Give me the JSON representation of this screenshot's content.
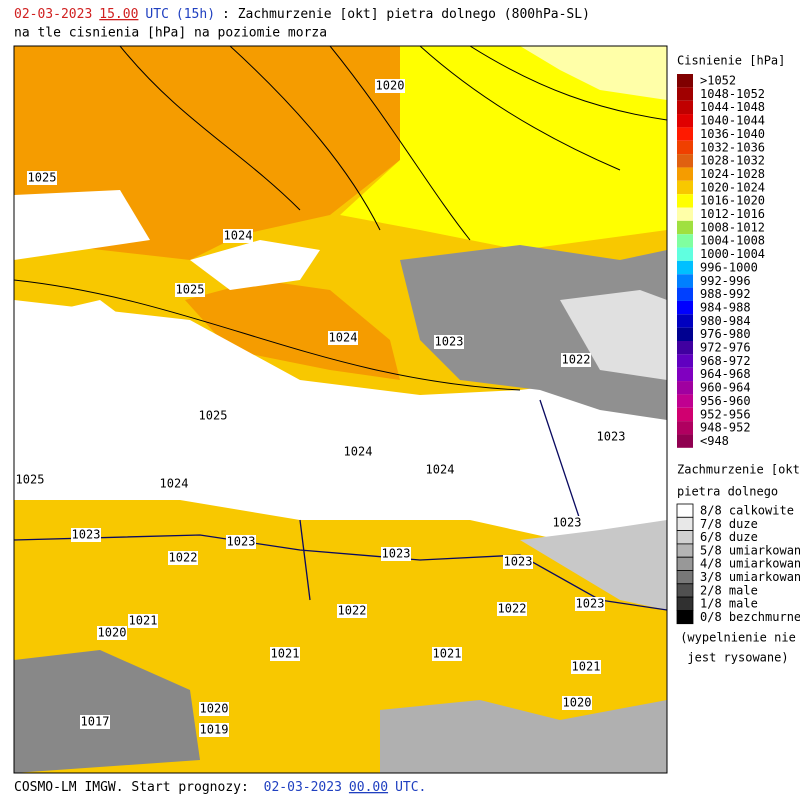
{
  "header": {
    "line1": [
      {
        "text": "02-03-2023",
        "color": "#d02020"
      },
      {
        "text": "15.00",
        "color": "#d02020",
        "underline": true
      },
      {
        "text": "UTC",
        "color": "#2040c0"
      },
      {
        "text": "(15h)",
        "color": "#2040c0"
      },
      {
        "text": ": Zachmurzenie [okt] pietra dolnego (800hPa-SL)",
        "color": "#000"
      }
    ],
    "line2": "na tle cisnienia [hPa] na poziomie morza"
  },
  "pressure_legend": {
    "title": "Cisnienie [hPa]",
    "items": [
      {
        "label": ">1052",
        "color": "#800000"
      },
      {
        "label": "1048-1052",
        "color": "#a00000"
      },
      {
        "label": "1044-1048",
        "color": "#c00000"
      },
      {
        "label": "1040-1044",
        "color": "#e00000"
      },
      {
        "label": "1036-1040",
        "color": "#ff1a00"
      },
      {
        "label": "1032-1036",
        "color": "#f04000"
      },
      {
        "label": "1028-1032",
        "color": "#e06010"
      },
      {
        "label": "1024-1028",
        "color": "#f59c00"
      },
      {
        "label": "1020-1024",
        "color": "#f8c800"
      },
      {
        "label": "1016-1020",
        "color": "#ffff00"
      },
      {
        "label": "1012-1016",
        "color": "#ffffa8"
      },
      {
        "label": "1008-1012",
        "color": "#a0e040"
      },
      {
        "label": "1004-1008",
        "color": "#80ffa0"
      },
      {
        "label": "1000-1004",
        "color": "#60ffe0"
      },
      {
        "label": "996-1000",
        "color": "#00c0ff"
      },
      {
        "label": "992-996",
        "color": "#0080ff"
      },
      {
        "label": "988-992",
        "color": "#0040ff"
      },
      {
        "label": "984-988",
        "color": "#0000ff"
      },
      {
        "label": "980-984",
        "color": "#0000c0"
      },
      {
        "label": "976-980",
        "color": "#000090"
      },
      {
        "label": "972-976",
        "color": "#4000a0"
      },
      {
        "label": "968-972",
        "color": "#6000c0"
      },
      {
        "label": "964-968",
        "color": "#8000c0"
      },
      {
        "label": "960-964",
        "color": "#a000a0"
      },
      {
        "label": "956-960",
        "color": "#c00090"
      },
      {
        "label": "952-956",
        "color": "#d00070"
      },
      {
        "label": "948-952",
        "color": "#b00060"
      },
      {
        "label": "<948",
        "color": "#900050"
      }
    ]
  },
  "cloud_legend": {
    "title": [
      "Zachmurzenie [okt]",
      "pietra dolnego"
    ],
    "items": [
      {
        "label": "8/8 calkowite",
        "color": "#ffffff"
      },
      {
        "label": "7/8 duze",
        "color": "#e8e8e8"
      },
      {
        "label": "6/8 duze",
        "color": "#d0d0d0"
      },
      {
        "label": "5/8 umiarkowane",
        "color": "#b4b4b4"
      },
      {
        "label": "4/8 umiarkowane",
        "color": "#989898"
      },
      {
        "label": "3/8 umiarkowane",
        "color": "#787878"
      },
      {
        "label": "2/8 male",
        "color": "#505050"
      },
      {
        "label": "1/8 male",
        "color": "#303030"
      },
      {
        "label": "0/8 bezchmurne",
        "color": "#000000"
      }
    ],
    "note": [
      "(wypelnienie nie",
      "jest rysowane)"
    ]
  },
  "isobar_labels": [
    "1020",
    "1025",
    "1024",
    "1025",
    "1024",
    "1023",
    "1022",
    "1025",
    "1023",
    "1024",
    "1024",
    "1025",
    "1024",
    "1023",
    "1023",
    "1023",
    "1022",
    "1023",
    "1023",
    "1023",
    "1022",
    "1022",
    "1021",
    "1020",
    "1021",
    "1021",
    "1021",
    "1020",
    "1020",
    "1017",
    "1019"
  ],
  "footer": [
    {
      "text": "COSMO-LM IMGW. Start prognozy: ",
      "color": "#000"
    },
    {
      "text": "02-03-2023",
      "color": "#2040c0"
    },
    {
      "text": "00.00",
      "color": "#2040c0",
      "underline": true
    },
    {
      "text": "UTC.",
      "color": "#2040c0"
    }
  ]
}
